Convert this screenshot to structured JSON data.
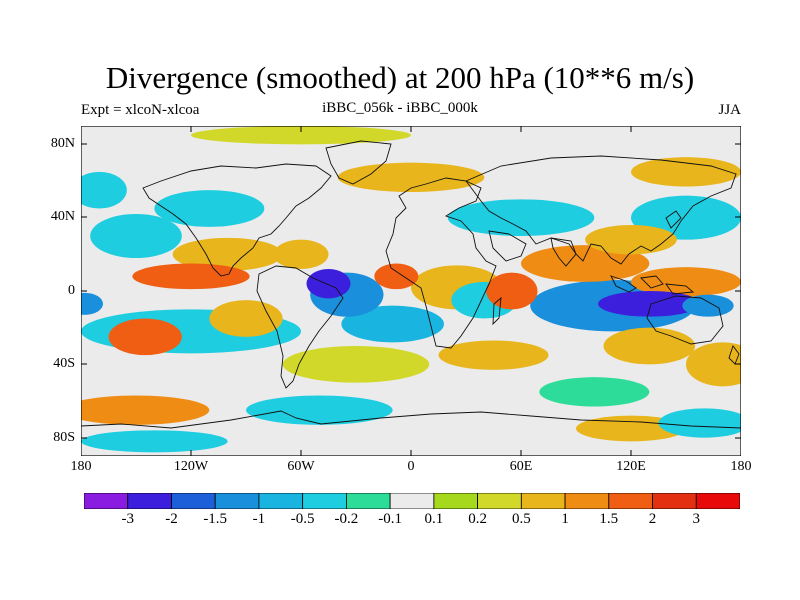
{
  "title": "Divergence (smoothed) at 200 hPa (10**6 m/s)",
  "subtitle_left": "Expt = xlcoN-xlcoa",
  "subtitle_center": "iBBC_056k - iBBC_000k",
  "subtitle_right": "JJA",
  "lat_labels": [
    "80N",
    "40N",
    "0",
    "40S",
    "80S"
  ],
  "lon_labels": [
    "180",
    "120W",
    "60W",
    "0",
    "60E",
    "120E",
    "180"
  ],
  "colorbar": {
    "levels": [
      "-3",
      "-2",
      "-1.5",
      "-1",
      "-0.5",
      "-0.2",
      "-0.1",
      "0.1",
      "0.2",
      "0.5",
      "1",
      "1.5",
      "2",
      "3"
    ],
    "colors": [
      "#8a1be0",
      "#3c1fdc",
      "#1c5fd8",
      "#1a8fdc",
      "#19b5e0",
      "#1fcde0",
      "#2edc9a",
      "#ebebeb",
      "#a6d81e",
      "#d2d82a",
      "#e8b51c",
      "#ef8c14",
      "#ef5e12",
      "#e33010",
      "#e80a0a"
    ]
  },
  "map_data": {
    "type": "filled-contour-map",
    "projection": "cylindrical-equidistant",
    "lon_range": [
      -180,
      180
    ],
    "lat_range": [
      -90,
      90
    ],
    "blobs": [
      {
        "lon": -45,
        "lat": 4,
        "rlon": 12,
        "rlat": 8,
        "v": -3
      },
      {
        "lon": -35,
        "lat": -2,
        "rlon": 20,
        "rlat": 12,
        "v": -1.5
      },
      {
        "lon": 130,
        "lat": -7,
        "rlon": 28,
        "rlat": 7,
        "v": -3
      },
      {
        "lon": 110,
        "lat": -8,
        "rlon": 45,
        "rlat": 14,
        "v": -1.5
      },
      {
        "lon": 162,
        "lat": -8,
        "rlon": 14,
        "rlat": 6,
        "v": -1.5
      },
      {
        "lon": -178,
        "lat": -7,
        "rlon": 10,
        "rlat": 6,
        "v": -1.5
      },
      {
        "lon": -10,
        "lat": -18,
        "rlon": 28,
        "rlat": 10,
        "v": -1
      },
      {
        "lon": 40,
        "lat": -5,
        "rlon": 18,
        "rlat": 10,
        "v": -0.5
      },
      {
        "lon": -120,
        "lat": -22,
        "rlon": 60,
        "rlat": 12,
        "v": -0.5
      },
      {
        "lon": -150,
        "lat": 30,
        "rlon": 25,
        "rlat": 12,
        "v": -0.5
      },
      {
        "lon": -110,
        "lat": 45,
        "rlon": 30,
        "rlat": 10,
        "v": -0.5
      },
      {
        "lon": -170,
        "lat": 55,
        "rlon": 15,
        "rlat": 10,
        "v": -0.5
      },
      {
        "lon": 150,
        "lat": 40,
        "rlon": 30,
        "rlat": 12,
        "v": -0.5
      },
      {
        "lon": 60,
        "lat": 40,
        "rlon": 40,
        "rlat": 10,
        "v": -0.5
      },
      {
        "lon": -50,
        "lat": -65,
        "rlon": 40,
        "rlat": 8,
        "v": -0.5
      },
      {
        "lon": 160,
        "lat": -72,
        "rlon": 25,
        "rlat": 8,
        "v": -0.5
      },
      {
        "lon": 100,
        "lat": -55,
        "rlon": 30,
        "rlat": 8,
        "v": -0.2
      },
      {
        "lon": -140,
        "lat": -82,
        "rlon": 40,
        "rlat": 6,
        "v": -0.5
      },
      {
        "lon": -100,
        "lat": 20,
        "rlon": 30,
        "rlat": 9,
        "v": 0.5
      },
      {
        "lon": -120,
        "lat": 8,
        "rlon": 32,
        "rlat": 7,
        "v": 1.5
      },
      {
        "lon": -145,
        "lat": -25,
        "rlon": 20,
        "rlat": 10,
        "v": 1.5
      },
      {
        "lon": -90,
        "lat": -15,
        "rlon": 20,
        "rlat": 10,
        "v": 0.5
      },
      {
        "lon": -8,
        "lat": 8,
        "rlon": 12,
        "rlat": 7,
        "v": 1.5
      },
      {
        "lon": 25,
        "lat": 2,
        "rlon": 25,
        "rlat": 12,
        "v": 0.5
      },
      {
        "lon": 55,
        "lat": 0,
        "rlon": 14,
        "rlat": 10,
        "v": 1.5
      },
      {
        "lon": 95,
        "lat": 15,
        "rlon": 35,
        "rlat": 10,
        "v": 1
      },
      {
        "lon": 150,
        "lat": 5,
        "rlon": 30,
        "rlat": 8,
        "v": 1
      },
      {
        "lon": 120,
        "lat": 28,
        "rlon": 25,
        "rlat": 8,
        "v": 0.5
      },
      {
        "lon": -60,
        "lat": 20,
        "rlon": 15,
        "rlat": 8,
        "v": 0.5
      },
      {
        "lon": 45,
        "lat": -35,
        "rlon": 30,
        "rlat": 8,
        "v": 0.5
      },
      {
        "lon": 130,
        "lat": -30,
        "rlon": 25,
        "rlat": 10,
        "v": 0.5
      },
      {
        "lon": -150,
        "lat": -65,
        "rlon": 40,
        "rlat": 8,
        "v": 1
      },
      {
        "lon": 120,
        "lat": -75,
        "rlon": 30,
        "rlat": 7,
        "v": 0.5
      },
      {
        "lon": 0,
        "lat": 62,
        "rlon": 40,
        "rlat": 8,
        "v": 0.5
      },
      {
        "lon": -60,
        "lat": 85,
        "rlon": 60,
        "rlat": 5,
        "v": 0.2
      },
      {
        "lon": 150,
        "lat": 65,
        "rlon": 30,
        "rlat": 8,
        "v": 0.5
      },
      {
        "lon": -30,
        "lat": -40,
        "rlon": 40,
        "rlat": 10,
        "v": 0.2
      },
      {
        "lon": 170,
        "lat": -40,
        "rlon": 20,
        "rlat": 12,
        "v": 0.5
      }
    ]
  }
}
